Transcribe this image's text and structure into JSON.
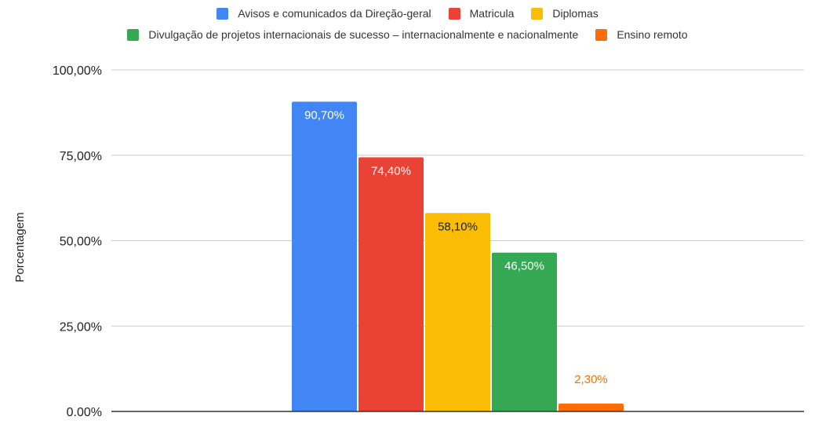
{
  "chart_data": {
    "type": "bar",
    "categories": [
      ""
    ],
    "series": [
      {
        "name": "Avisos e comunicados da Direção-geral",
        "color": "#4285F4",
        "values": [
          90.7
        ],
        "label": "90,70%",
        "label_color": "#ffffff",
        "label_inside": true
      },
      {
        "name": "Matricula",
        "color": "#EA4335",
        "values": [
          74.4
        ],
        "label": "74,40%",
        "label_color": "#ffffff",
        "label_inside": true
      },
      {
        "name": "Diplomas",
        "color": "#FBBC04",
        "values": [
          58.1
        ],
        "label": "58,10%",
        "label_color": "#222222",
        "label_inside": true
      },
      {
        "name": "Divulgação de projetos internacionais de sucesso – internacionalmente e nacionalmente",
        "color": "#34A853",
        "values": [
          46.5
        ],
        "label": "46,50%",
        "label_color": "#ffffff",
        "label_inside": true
      },
      {
        "name": "Ensino remoto",
        "color": "#FF6D01",
        "values": [
          2.3
        ],
        "label": "2,30%",
        "label_color": "#FF6D01",
        "label_inside": false
      }
    ],
    "ylabel": "Porcentagem",
    "xlabel": "",
    "ylim": [
      0,
      100
    ],
    "yticks": [
      0,
      25,
      50,
      75,
      100
    ],
    "ytick_labels": [
      "0.00%",
      "25,00%",
      "50,00%",
      "75,00%",
      "100,00%"
    ],
    "grid": true,
    "legend_position": "top"
  }
}
